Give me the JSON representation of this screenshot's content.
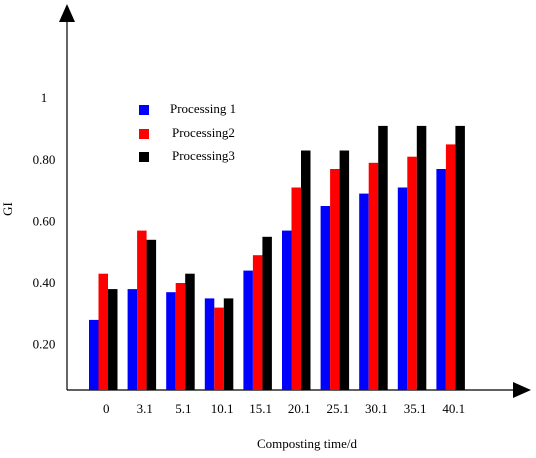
{
  "chart_data": {
    "type": "bar",
    "xlabel": "Composting time/d",
    "ylabel": "GI",
    "categories": [
      "0",
      "3.1",
      "5.1",
      "10.1",
      "15.1",
      "20.1",
      "25.1",
      "30.1",
      "35.1",
      "40.1"
    ],
    "yticks": [
      {
        "value": 0.2,
        "label": "0.20"
      },
      {
        "value": 0.4,
        "label": "0.40"
      },
      {
        "value": 0.6,
        "label": "0.60"
      },
      {
        "value": 0.8,
        "label": "0.80"
      },
      {
        "value": 1.0,
        "label": "1"
      }
    ],
    "ylim": [
      0.07,
      1.1
    ],
    "series": [
      {
        "name": "Processing 1",
        "color": "#0000ff",
        "values": [
          0.28,
          0.38,
          0.37,
          0.35,
          0.44,
          0.57,
          0.65,
          0.69,
          0.71,
          0.77
        ]
      },
      {
        "name": "Processing2",
        "color": "#ff0000",
        "values": [
          0.43,
          0.57,
          0.4,
          0.32,
          0.49,
          0.71,
          0.77,
          0.79,
          0.81,
          0.85
        ]
      },
      {
        "name": "Processing3",
        "color": "#000000",
        "values": [
          0.38,
          0.54,
          0.43,
          0.35,
          0.55,
          0.83,
          0.83,
          0.91,
          0.91,
          0.91
        ]
      }
    ],
    "grid": false,
    "legend_position": "top-left"
  }
}
